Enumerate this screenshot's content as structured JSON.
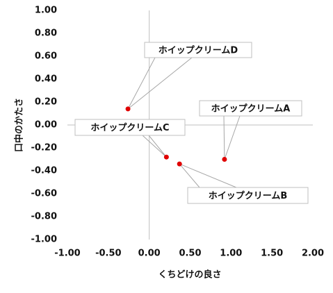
{
  "chart_data": {
    "type": "scatter",
    "x_label": "くちどけの良さ",
    "y_label": "口中のかたさ",
    "x": [
      0.92,
      0.37,
      0.21,
      -0.26
    ],
    "values": [
      -0.3,
      -0.34,
      -0.28,
      0.14
    ],
    "point_labels": [
      "ホイップクリームA",
      "ホイップクリームB",
      "ホイップクリームC",
      "ホイップクリームD"
    ],
    "color": "#e00000",
    "xlim": [
      -1,
      2
    ],
    "ylim": [
      -1,
      1
    ],
    "xticks": [
      {
        "value": -1,
        "label": "-1.00"
      },
      {
        "value": -0.5,
        "label": "-0.50"
      },
      {
        "value": 0,
        "label": "0.00"
      },
      {
        "value": 0.5,
        "label": "0.50"
      },
      {
        "value": 1,
        "label": "1.00"
      },
      {
        "value": 1.5,
        "label": "1.50"
      },
      {
        "value": 2,
        "label": "2.00"
      }
    ],
    "yticks": [
      {
        "value": -1,
        "label": "-1.00"
      },
      {
        "value": -0.8,
        "label": "-0.80"
      },
      {
        "value": -0.6,
        "label": "-0.60"
      },
      {
        "value": -0.4,
        "label": "-0.40"
      },
      {
        "value": -0.2,
        "label": "-0.20"
      },
      {
        "value": 0,
        "label": "0.00"
      },
      {
        "value": 0.2,
        "label": "0.20"
      },
      {
        "value": 0.4,
        "label": "0.40"
      },
      {
        "value": 0.6,
        "label": "0.60"
      },
      {
        "value": 0.8,
        "label": "0.80"
      },
      {
        "value": 1,
        "label": "1.00"
      }
    ]
  }
}
